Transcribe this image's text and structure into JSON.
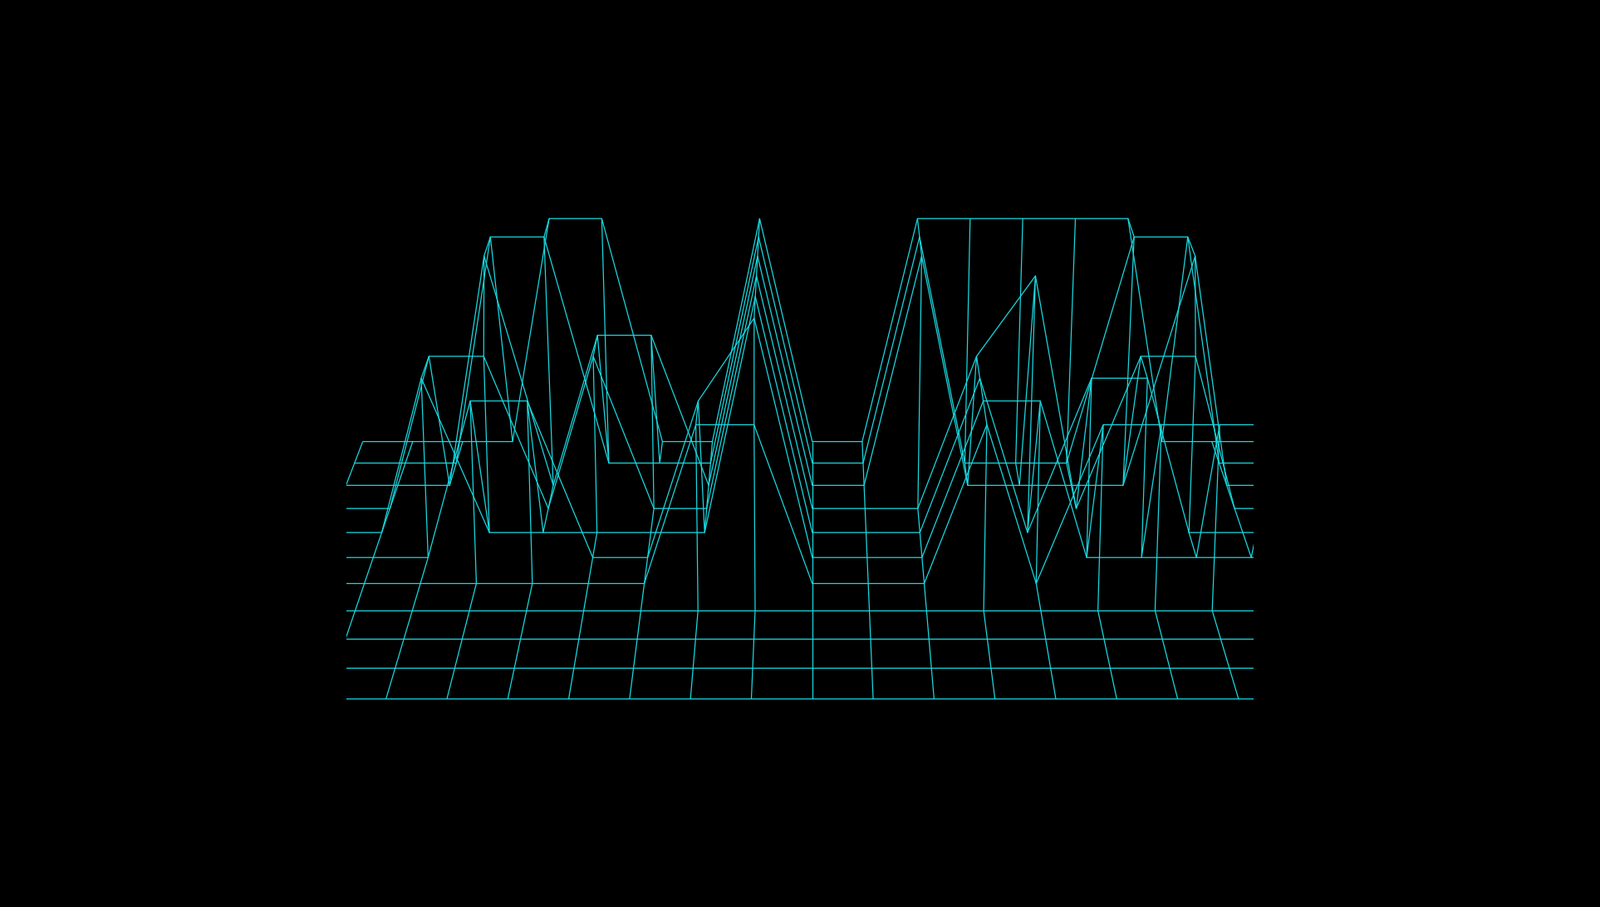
{
  "chart_data": {
    "type": "wireframe",
    "color": "#19d9e0",
    "tick_labels": false,
    "xlim": [
      0,
      18
    ],
    "ylim": [
      0,
      10
    ],
    "zlim": [
      0,
      3
    ],
    "z": [
      [
        0,
        0,
        0,
        0,
        3,
        3,
        0,
        0,
        3,
        0,
        0,
        3,
        3,
        3,
        3,
        3,
        0,
        0,
        0
      ],
      [
        0,
        0,
        0,
        3,
        3,
        0,
        0,
        0,
        3,
        0,
        0,
        3,
        0,
        0,
        0,
        3,
        3,
        0,
        0
      ],
      [
        0,
        0,
        0,
        3,
        0,
        2,
        2,
        0,
        3,
        0,
        0,
        3,
        0,
        0,
        0,
        0,
        3,
        0,
        0
      ],
      [
        0,
        0,
        2,
        2,
        0,
        2,
        0,
        0,
        3,
        0,
        0,
        0,
        2,
        3,
        0,
        2,
        2,
        0,
        0
      ],
      [
        0,
        0,
        2,
        0,
        0,
        0,
        0,
        0,
        3,
        0,
        0,
        0,
        2,
        0,
        2,
        2,
        0,
        0,
        0
      ],
      [
        0,
        0,
        0,
        2,
        2,
        0,
        0,
        2,
        3,
        0,
        0,
        0,
        2,
        2,
        0,
        0,
        0,
        0,
        0
      ],
      [
        0,
        0,
        0,
        0,
        0,
        0,
        0,
        2,
        2,
        0,
        0,
        0,
        2,
        0,
        2,
        2,
        2,
        2,
        0
      ],
      [
        0,
        0,
        0,
        0,
        0,
        0,
        0,
        0,
        0,
        0,
        0,
        0,
        0,
        0,
        0,
        0,
        0,
        0,
        0
      ],
      [
        0,
        0,
        0,
        0,
        0,
        0,
        0,
        0,
        0,
        0,
        0,
        0,
        0,
        0,
        0,
        0,
        0,
        0,
        0
      ],
      [
        0,
        0,
        0,
        0,
        0,
        0,
        0,
        0,
        0,
        0,
        0,
        0,
        0,
        0,
        0,
        0,
        0,
        0,
        0
      ],
      [
        0,
        0,
        0,
        0,
        0,
        0,
        0,
        0,
        0,
        0,
        0,
        0,
        0,
        0,
        0,
        0,
        0,
        0,
        0
      ]
    ]
  }
}
